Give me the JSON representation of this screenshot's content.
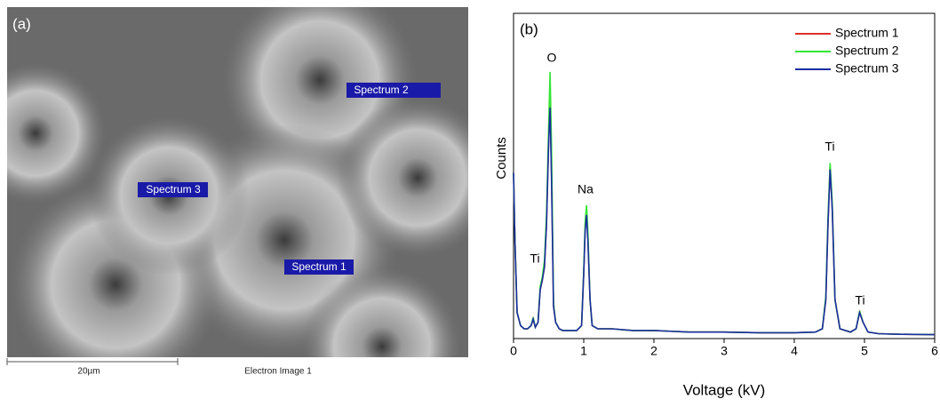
{
  "image_panel": {
    "label": "(a)",
    "spectrum_labels": [
      "Spectrum 1",
      "Spectrum 2",
      "Spectrum 3"
    ],
    "scale_bar": "20µm",
    "caption": "Electron Image 1"
  },
  "chart_data": {
    "type": "line",
    "panel_label": "(b)",
    "x_label": "Voltage (kV)",
    "y_label": "Counts",
    "annotations": [
      "O",
      "Na",
      "Ti",
      "Ti",
      "Ti"
    ],
    "x": [
      0,
      0.02,
      0.05,
      0.1,
      0.15,
      0.2,
      0.25,
      0.28,
      0.31,
      0.35,
      0.38,
      0.41,
      0.44,
      0.47,
      0.5,
      0.52,
      0.54,
      0.57,
      0.6,
      0.65,
      0.7,
      0.8,
      0.9,
      0.97,
      1.0,
      1.02,
      1.04,
      1.06,
      1.09,
      1.12,
      1.2,
      1.4,
      1.7,
      2.0,
      2.5,
      3.0,
      3.5,
      4.0,
      4.3,
      4.4,
      4.45,
      4.48,
      4.51,
      4.54,
      4.58,
      4.65,
      4.8,
      4.88,
      4.93,
      4.98,
      5.05,
      5.2,
      5.5,
      6.0
    ],
    "series": [
      {
        "name": "Spectrum 1",
        "color": "#e0302a",
        "values": [
          51,
          30,
          8,
          4,
          3,
          3,
          4,
          6,
          3.5,
          5,
          15,
          18,
          22,
          35,
          61,
          73,
          51,
          10,
          5,
          3,
          2.5,
          2.5,
          2.5,
          4,
          20,
          34,
          39,
          31,
          12,
          4,
          3,
          3,
          2.5,
          2.5,
          2,
          2,
          1.8,
          1.8,
          2,
          3,
          12,
          35,
          53,
          40,
          12,
          3,
          2,
          3,
          8,
          5,
          2,
          1.5,
          1.3,
          1.2
        ]
      },
      {
        "name": "Spectrum 2",
        "color": "#33e633",
        "values": [
          51,
          30,
          8,
          4,
          3,
          3,
          4,
          6.5,
          3.5,
          5,
          16,
          19,
          24,
          38,
          65,
          82,
          60,
          11,
          5,
          3,
          2.5,
          2.5,
          2.5,
          4,
          21,
          36,
          41,
          33,
          12,
          4,
          3,
          3,
          2.5,
          2.5,
          2,
          2,
          1.8,
          1.8,
          2,
          3,
          13,
          37,
          54,
          42,
          12,
          3,
          2,
          3,
          8.5,
          5,
          2,
          1.5,
          1.3,
          1.2
        ]
      },
      {
        "name": "Spectrum 3",
        "color": "#1a2fa0",
        "values": [
          51,
          30,
          8,
          4,
          3,
          3,
          4,
          6,
          3.5,
          5,
          15,
          18,
          22,
          35,
          60,
          71,
          50,
          10,
          5,
          3,
          2.5,
          2.5,
          2.5,
          4,
          20,
          33,
          38,
          30,
          12,
          4,
          3,
          3,
          2.5,
          2.5,
          2,
          2,
          1.8,
          1.8,
          2,
          3,
          12,
          35,
          52,
          40,
          12,
          3,
          2,
          3,
          8,
          5,
          2,
          1.5,
          1.3,
          1.2
        ]
      }
    ],
    "xlim": [
      0,
      6
    ],
    "xticks": [
      0,
      1,
      2,
      3,
      4,
      5,
      6
    ],
    "ylim": [
      0,
      100
    ],
    "legend": "upper right"
  }
}
